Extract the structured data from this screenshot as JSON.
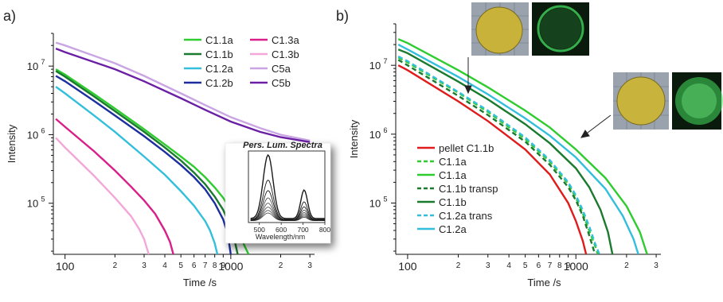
{
  "panels": [
    {
      "panel_label": "a)",
      "inset": {
        "title": "Pers. Lum. Spectra",
        "xlabel": "Wavelength/nm",
        "x_ticks": [
          "500",
          "600",
          "700",
          "800"
        ]
      }
    },
    {
      "panel_label": "b)",
      "photos": [
        {
          "description": "yellow pellet under daylight",
          "color": "#c9b23a"
        },
        {
          "description": "green glowing pellet in the dark",
          "color": "#3fd35a"
        },
        {
          "description": "yellow pellet under daylight",
          "color": "#c8b43c"
        },
        {
          "description": "green glowing pellet in the dark",
          "color": "#46e05e"
        }
      ]
    }
  ],
  "chart_data": [
    {
      "type": "line",
      "panel": "a)",
      "xlabel": "Time /s",
      "ylabel": "Intensity",
      "xscale": "log",
      "yscale": "log",
      "xlim": [
        85,
        3200
      ],
      "ylim": [
        18000,
        30000000
      ],
      "x_tick_labels": [
        {
          "x": 100,
          "label": "100",
          "major": true
        },
        {
          "x": 200,
          "label": "2",
          "major": false
        },
        {
          "x": 300,
          "label": "3",
          "major": false
        },
        {
          "x": 400,
          "label": "4",
          "major": false
        },
        {
          "x": 500,
          "label": "5",
          "major": false
        },
        {
          "x": 600,
          "label": "6",
          "major": false
        },
        {
          "x": 700,
          "label": "7",
          "major": false
        },
        {
          "x": 800,
          "label": "8",
          "major": false
        },
        {
          "x": 900,
          "label": "9",
          "major": false
        },
        {
          "x": 1000,
          "label": "1000",
          "major": true
        },
        {
          "x": 2000,
          "label": "2",
          "major": false
        },
        {
          "x": 3000,
          "label": "3",
          "major": false
        }
      ],
      "y_tick_labels": [
        {
          "y": 100000,
          "base": "10",
          "exp": "5"
        },
        {
          "y": 1000000,
          "base": "10",
          "exp": "6"
        },
        {
          "y": 10000000,
          "base": "10",
          "exp": "7"
        }
      ],
      "legend_position": "top-right",
      "legend_columns": 2,
      "series": [
        {
          "name": "C1.1a",
          "color": "#2ecc2e",
          "x": [
            88,
            100,
            150,
            200,
            300,
            400,
            500,
            600,
            700,
            800,
            900,
            1000,
            1100,
            1200,
            1280
          ],
          "y": [
            9000000,
            7500000,
            3900000,
            2400000,
            1200000,
            720000,
            480000,
            340000,
            240000,
            170000,
            120000,
            80000,
            48000,
            25000,
            18000
          ]
        },
        {
          "name": "C1.1b",
          "color": "#1a7a2e",
          "x": [
            88,
            100,
            150,
            200,
            300,
            400,
            500,
            600,
            700,
            800,
            900,
            1000,
            1050,
            1100
          ],
          "y": [
            8500000,
            7000000,
            3600000,
            2200000,
            1100000,
            650000,
            420000,
            280000,
            190000,
            125000,
            80000,
            45000,
            30000,
            18000
          ]
        },
        {
          "name": "C1.2a",
          "color": "#33bfdc",
          "x": [
            88,
            100,
            150,
            200,
            300,
            400,
            500,
            600,
            700,
            750,
            800,
            830
          ],
          "y": [
            5000000,
            4000000,
            1900000,
            1100000,
            480000,
            260000,
            150000,
            92000,
            55000,
            40000,
            26000,
            18000
          ]
        },
        {
          "name": "C1.2b",
          "color": "#1c2f9e",
          "x": [
            88,
            100,
            150,
            200,
            300,
            400,
            500,
            600,
            700,
            800,
            900,
            960,
            1000
          ],
          "y": [
            7200000,
            6000000,
            3100000,
            1900000,
            950000,
            560000,
            360000,
            240000,
            160000,
            100000,
            58000,
            35000,
            18000
          ]
        },
        {
          "name": "C1.3a",
          "color": "#d81f8a",
          "x": [
            88,
            100,
            150,
            200,
            250,
            300,
            350,
            400,
            430,
            450
          ],
          "y": [
            1700000,
            1300000,
            570000,
            300000,
            175000,
            110000,
            70000,
            40000,
            27000,
            18000
          ]
        },
        {
          "name": "C1.3b",
          "color": "#f2a7d8",
          "x": [
            88,
            100,
            150,
            200,
            250,
            280,
            300,
            320
          ],
          "y": [
            900000,
            650000,
            250000,
            120000,
            65000,
            42000,
            30000,
            18000
          ]
        },
        {
          "name": "C5a",
          "color": "#c9a6e3",
          "x": [
            88,
            100,
            200,
            300,
            500,
            700,
            1000,
            1500,
            2000,
            3000
          ],
          "y": [
            22000000,
            20000000,
            11000000,
            7200000,
            4000000,
            2700000,
            1800000,
            1250000,
            1000000,
            820000
          ]
        },
        {
          "name": "C5b",
          "color": "#6a1fa5",
          "x": [
            88,
            100,
            200,
            300,
            500,
            700,
            1000,
            1500,
            2000,
            3000
          ],
          "y": [
            18000000,
            16000000,
            9000000,
            6000000,
            3400000,
            2300000,
            1550000,
            1100000,
            920000,
            780000
          ]
        }
      ]
    },
    {
      "type": "line",
      "panel": "b)",
      "xlabel": "Time /s",
      "ylabel": "Intensity",
      "xscale": "log",
      "yscale": "log",
      "xlim": [
        85,
        3200
      ],
      "ylim": [
        18000,
        40000000
      ],
      "x_tick_labels": [
        {
          "x": 100,
          "label": "100",
          "major": true
        },
        {
          "x": 200,
          "label": "2",
          "major": false
        },
        {
          "x": 300,
          "label": "3",
          "major": false
        },
        {
          "x": 400,
          "label": "4",
          "major": false
        },
        {
          "x": 500,
          "label": "5",
          "major": false
        },
        {
          "x": 600,
          "label": "6",
          "major": false
        },
        {
          "x": 700,
          "label": "7",
          "major": false
        },
        {
          "x": 800,
          "label": "8",
          "major": false
        },
        {
          "x": 900,
          "label": "9",
          "major": false
        },
        {
          "x": 1000,
          "label": "1000",
          "major": true
        },
        {
          "x": 2000,
          "label": "2",
          "major": false
        },
        {
          "x": 3000,
          "label": "3",
          "major": false
        }
      ],
      "y_tick_labels": [
        {
          "y": 100000,
          "base": "10",
          "exp": "5"
        },
        {
          "y": 1000000,
          "base": "10",
          "exp": "6"
        },
        {
          "y": 10000000,
          "base": "10",
          "exp": "7"
        }
      ],
      "legend_position": "bottom-left",
      "series": [
        {
          "name": "pellet C1.1b",
          "color": "#e01b1b",
          "dash": false,
          "x": [
            88,
            100,
            200,
            300,
            500,
            700,
            900,
            1000,
            1100,
            1150
          ],
          "y": [
            10000000,
            8500000,
            3000000,
            1550000,
            600000,
            260000,
            100000,
            55000,
            28000,
            18000
          ]
        },
        {
          "name": "C1.1a",
          "color": "#2ecc2e",
          "dash": true,
          "x": [
            88,
            100,
            200,
            300,
            500,
            700,
            900,
            1000,
            1100,
            1200,
            1300,
            1350
          ],
          "y": [
            13000000,
            11000000,
            4000000,
            2100000,
            850000,
            400000,
            190000,
            120000,
            70000,
            40000,
            24000,
            18000
          ]
        },
        {
          "name": "C1.1a",
          "color": "#2ecc2e",
          "dash": false,
          "x": [
            88,
            100,
            200,
            300,
            500,
            700,
            1000,
            1500,
            2000,
            2400,
            2650
          ],
          "y": [
            24000000,
            21000000,
            8500000,
            4800000,
            2200000,
            1250000,
            600000,
            230000,
            90000,
            38000,
            18000
          ]
        },
        {
          "name": "C1.1b  transp",
          "color": "#1a7a2e",
          "dash": true,
          "x": [
            88,
            100,
            200,
            300,
            500,
            700,
            900,
            1000,
            1100,
            1200,
            1300
          ],
          "y": [
            12000000,
            10000000,
            3600000,
            1900000,
            780000,
            360000,
            170000,
            110000,
            65000,
            34000,
            18000
          ]
        },
        {
          "name": "C1.1b",
          "color": "#1a7a2e",
          "dash": false,
          "x": [
            88,
            100,
            200,
            300,
            500,
            700,
            1000,
            1200,
            1400,
            1550,
            1650
          ],
          "y": [
            17000000,
            15000000,
            5800000,
            3200000,
            1400000,
            740000,
            320000,
            170000,
            80000,
            38000,
            18000
          ]
        },
        {
          "name": "C1.2a trans",
          "color": "#33bfdc",
          "dash": true,
          "x": [
            88,
            100,
            200,
            300,
            500,
            700,
            900,
            1000,
            1100,
            1200,
            1300,
            1380
          ],
          "y": [
            13500000,
            11500000,
            4100000,
            2200000,
            900000,
            420000,
            200000,
            130000,
            78000,
            46000,
            26000,
            18000
          ]
        },
        {
          "name": "C1.2a",
          "color": "#33bfdc",
          "dash": false,
          "x": [
            88,
            100,
            200,
            300,
            500,
            700,
            1000,
            1500,
            1900,
            2200,
            2350
          ],
          "y": [
            20000000,
            17000000,
            6800000,
            3800000,
            1700000,
            950000,
            460000,
            160000,
            65000,
            30000,
            18000
          ]
        }
      ]
    }
  ]
}
